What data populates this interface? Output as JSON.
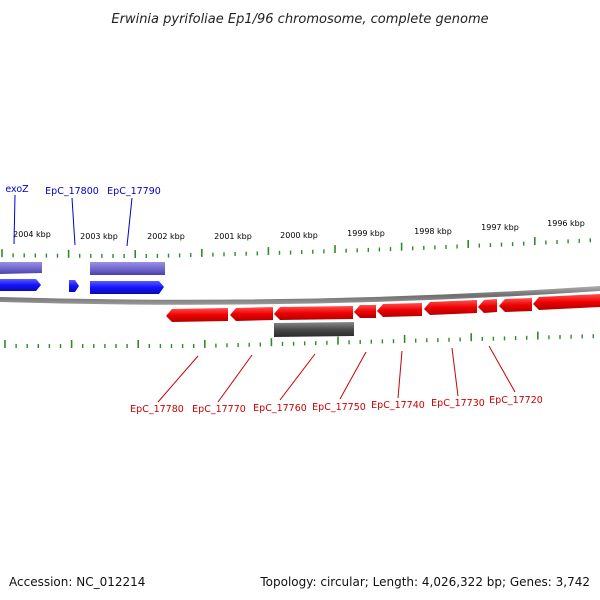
{
  "title": "Erwinia pyrifoliae Ep1/96 chromosome, complete genome",
  "footer": {
    "accession": "Accession: NC_012214",
    "summary": "Topology: circular; Length: 4,026,322 bp; Genes: 3,742"
  },
  "scale_labels": [
    "2004 kbp",
    "2003 kbp",
    "2002 kbp",
    "2001 kbp",
    "2000 kbp",
    "1999 kbp",
    "1998 kbp",
    "1997 kbp",
    "1996 kbp"
  ],
  "genes_top": [
    "exoZ",
    "EpC_17800",
    "EpC_17790"
  ],
  "genes_bottom": [
    "EpC_17780",
    "EpC_17770",
    "EpC_17760",
    "EpC_17750",
    "EpC_17740",
    "EpC_17730",
    "EpC_17720"
  ],
  "colors": {
    "forward_gene": "#1a1aff",
    "forward_gene_light": "#7b70d6",
    "reverse_gene": "#ff1a1a",
    "reverse_gene_light": "#555555",
    "backbone": "#7a7a7a",
    "ticks": "#2e8b2e",
    "forward_label": "#0000cc",
    "reverse_label": "#cc0000"
  }
}
